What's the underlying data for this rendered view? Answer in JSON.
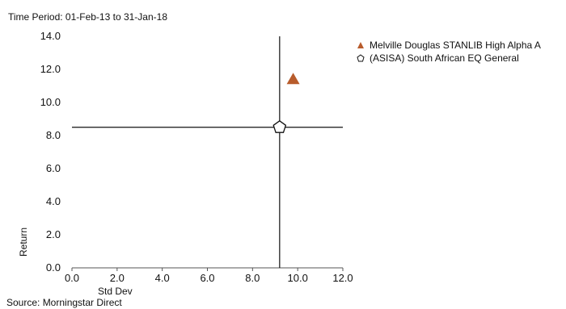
{
  "chart_data": {
    "type": "scatter",
    "subtitle": "Time Period: 01-Feb-13 to 31-Jan-18",
    "xlabel": "Std Dev",
    "ylabel": "Return",
    "xlim": [
      0,
      12
    ],
    "ylim": [
      0,
      14
    ],
    "x_ticks": [
      "0.0",
      "2.0",
      "4.0",
      "6.0",
      "8.0",
      "10.0",
      "12.0"
    ],
    "y_ticks": [
      "0.0",
      "2.0",
      "4.0",
      "6.0",
      "8.0",
      "10.0",
      "12.0",
      "14.0"
    ],
    "grid": false,
    "legend_position": "top-right",
    "reference_lines": {
      "x": 9.2,
      "y": 8.5
    },
    "series": [
      {
        "name": "Melville Douglas STANLIB High Alpha A",
        "marker": "triangle",
        "color": "#b85c2c",
        "x": [
          9.8
        ],
        "y": [
          11.4
        ]
      },
      {
        "name": "(ASISA) South African EQ General",
        "marker": "pentagon",
        "color": "#111111",
        "x": [
          9.2
        ],
        "y": [
          8.5
        ]
      }
    ],
    "source": "Source: Morningstar Direct"
  }
}
